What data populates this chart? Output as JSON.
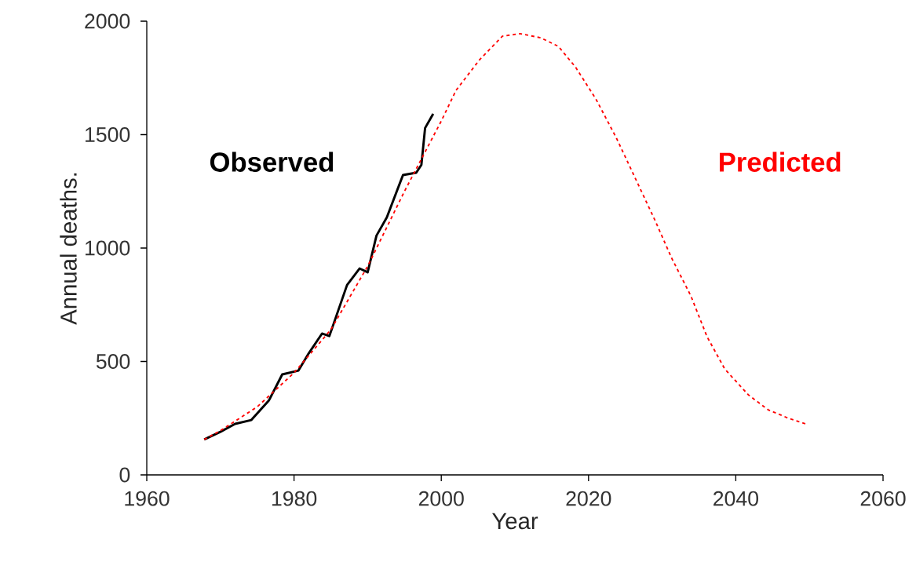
{
  "chart_data": {
    "type": "line",
    "xlabel": "Year",
    "ylabel": "Annual deaths.",
    "xlim": [
      1960,
      2060
    ],
    "xticks": [
      1960,
      1980,
      2000,
      2020,
      2040,
      2060
    ],
    "ylim": [
      0,
      2000
    ],
    "yticks": [
      0,
      500,
      1000,
      1500,
      2000
    ],
    "grid": false,
    "legend": false,
    "marker": "none",
    "series": [
      {
        "name": "Observed",
        "color": "#000000",
        "line_style": "solid",
        "x": [
          1967.8,
          1970,
          1972,
          1974.2,
          1976.6,
          1978.4,
          1980.6,
          1982,
          1983.8,
          1984.8,
          1987.2,
          1988.9,
          1990,
          1991.2,
          1992.6,
          1994.8,
          1996.6,
          1997.3,
          1997.8,
          1998.9
        ],
        "values": [
          156,
          190,
          225,
          242,
          329,
          443,
          460,
          536,
          623,
          612,
          837,
          910,
          893,
          1055,
          1135,
          1322,
          1332,
          1367,
          1529,
          1592
        ]
      },
      {
        "name": "Predicted",
        "color": "#ff0000",
        "line_style": "dotted",
        "x": [
          1967.8,
          1970,
          1975,
          1980,
          1985,
          1990,
          1995,
          2000,
          2002,
          2005.2,
          2008.3,
          2010.7,
          2013.5,
          2015.9,
          2018.2,
          2021,
          2023.8,
          2026.2,
          2029,
          2031.3,
          2033.9,
          2036.1,
          2038.5,
          2041.7,
          2044.4,
          2047.2,
          2049.5
        ],
        "values": [
          156,
          195,
          300,
          450,
          640,
          920,
          1250,
          1560,
          1695,
          1830,
          1934,
          1945,
          1927,
          1889,
          1799,
          1657,
          1484,
          1318,
          1124,
          955,
          789,
          609,
          467,
          353,
          287,
          249,
          225
        ]
      }
    ]
  }
}
